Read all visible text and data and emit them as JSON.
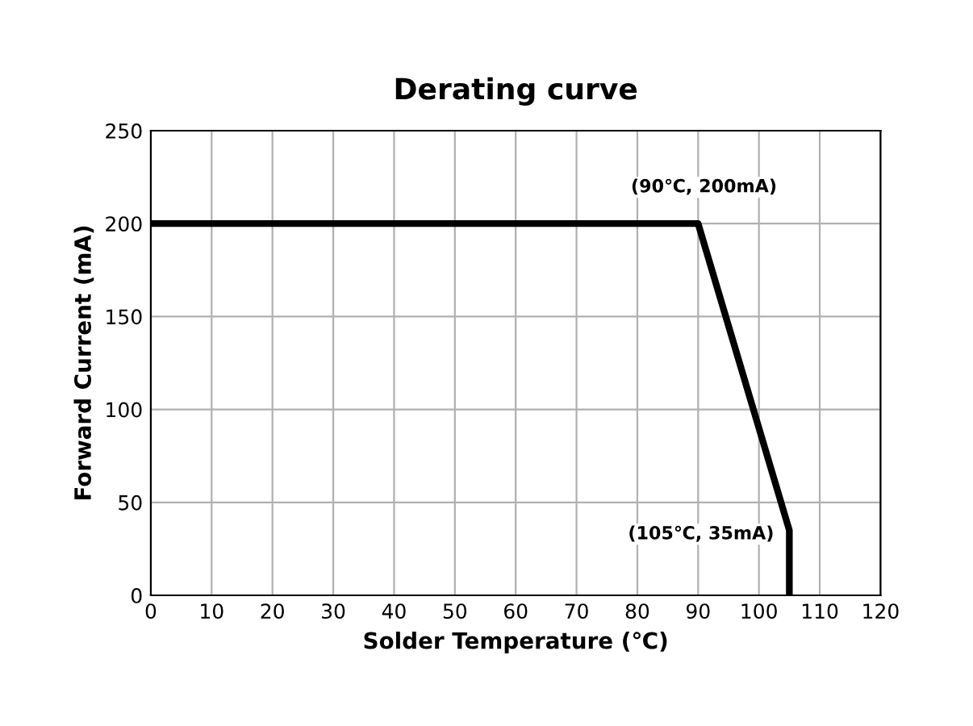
{
  "chart_data": {
    "type": "line",
    "title": "Derating curve",
    "xlabel": "Solder Temperature (℃)",
    "ylabel": "Forward Current (mA)",
    "x": [
      0,
      90,
      105,
      105
    ],
    "series": [
      {
        "color": "#000000",
        "values": [
          200,
          200,
          35,
          0
        ]
      }
    ],
    "xlim": [
      0,
      120
    ],
    "xticks": [
      0,
      10,
      20,
      30,
      40,
      50,
      60,
      70,
      80,
      90,
      100,
      110,
      120
    ],
    "ylim": [
      0,
      250
    ],
    "yticks": [
      0,
      50,
      100,
      150,
      200,
      250
    ],
    "grid": true,
    "marker": "none",
    "line_style": "solid",
    "annotations": [
      {
        "text": "(90℃, 200mA)",
        "x": 90,
        "y": 200
      },
      {
        "text": "(105℃, 35mA)",
        "x": 105,
        "y": 35
      }
    ]
  }
}
